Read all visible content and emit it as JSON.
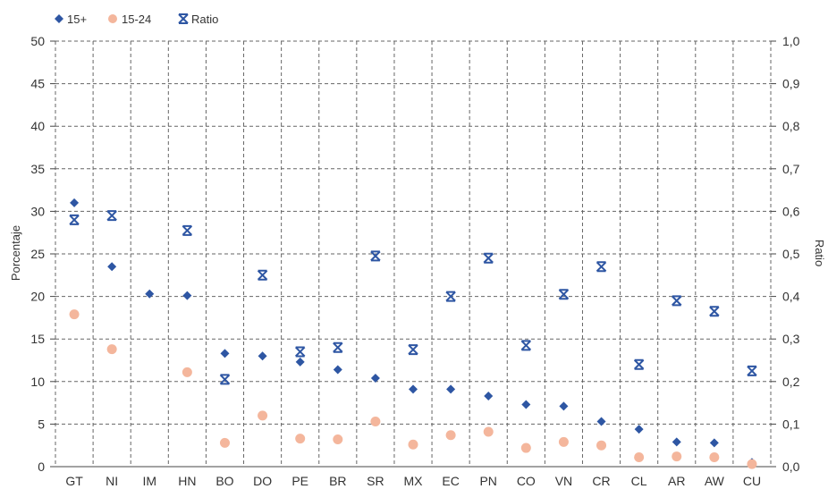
{
  "chart_data": {
    "type": "scatter",
    "title": "",
    "ylabel": "Porcentaje",
    "y2label": "Ratio",
    "ylim": [
      0,
      50
    ],
    "y2lim": [
      0,
      1.0
    ],
    "yticks": [
      "0",
      "5",
      "10",
      "15",
      "20",
      "25",
      "30",
      "35",
      "40",
      "45",
      "50"
    ],
    "y2ticks": [
      "0,0",
      "0,1",
      "0,2",
      "0,3",
      "0,4",
      "0,5",
      "0,6",
      "0,7",
      "0,8",
      "0,9",
      "1,0"
    ],
    "grid": true,
    "legend_position": "top-left",
    "categories": [
      "GT",
      "NI",
      "IM",
      "HN",
      "BO",
      "DO",
      "PE",
      "BR",
      "SR",
      "MX",
      "EC",
      "PN",
      "CO",
      "VN",
      "CR",
      "CL",
      "AR",
      "AW",
      "CU"
    ],
    "series": [
      {
        "name": "15+",
        "marker": "diamond",
        "color": "#2E56A3",
        "axis": "left",
        "values": [
          31.0,
          23.5,
          20.3,
          20.1,
          13.3,
          13.0,
          12.3,
          11.4,
          10.4,
          9.1,
          9.1,
          8.3,
          7.3,
          7.1,
          5.3,
          4.4,
          2.9,
          2.8,
          0.5
        ]
      },
      {
        "name": "15-24",
        "marker": "circle",
        "color": "#F4B69C",
        "axis": "left",
        "values": [
          17.9,
          13.8,
          null,
          11.1,
          2.8,
          6.0,
          3.3,
          3.2,
          5.3,
          2.6,
          3.7,
          4.1,
          2.2,
          2.9,
          2.5,
          1.1,
          1.2,
          1.1,
          0.3
        ]
      },
      {
        "name": "Ratio",
        "marker": "x-star",
        "color": "#2E56A3",
        "axis": "right",
        "values": [
          0.58,
          0.59,
          null,
          0.555,
          0.205,
          0.45,
          0.27,
          0.28,
          0.495,
          0.275,
          0.4,
          0.49,
          0.285,
          0.405,
          0.47,
          0.24,
          0.39,
          0.365,
          0.225
        ]
      }
    ]
  }
}
